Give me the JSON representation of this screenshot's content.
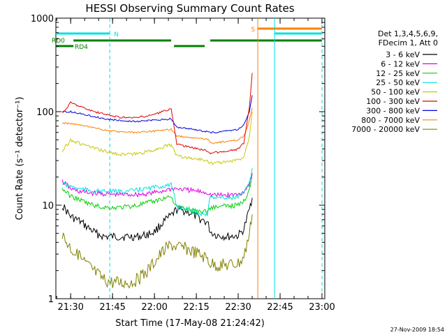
{
  "chart_data": {
    "type": "line",
    "title": "HESSI Observing Summary Count Rates",
    "xlabel": "Start Time (17-May-08 21:24:42)",
    "ylabel": "Count Rate (s⁻¹ detector⁻¹)",
    "ylog": true,
    "ylim": [
      1,
      1000
    ],
    "xlim_minutes": [
      21.4667,
      22.0167
    ],
    "x_ticks": [
      "21:30",
      "21:45",
      "22:00",
      "22:15",
      "22:30",
      "22:45",
      "23:00"
    ],
    "y_ticks": [
      "1",
      "10",
      "100",
      "1000"
    ],
    "legend_header": [
      "Det 1,3,4,5,6,9,",
      "FDecim 1, Att 0"
    ],
    "legend_position": "right",
    "footer_timestamp": "27-Nov-2009 18:54",
    "series": [
      {
        "name": "3 - 6 keV",
        "color": "#000000",
        "x": [
          "21:27",
          "21:30",
          "21:33",
          "21:36",
          "21:39",
          "21:42",
          "21:45",
          "21:48",
          "21:51",
          "21:54",
          "21:57",
          "22:00",
          "22:03",
          "22:06",
          "22:08",
          "22:12",
          "22:16",
          "22:19",
          "22:20",
          "22:22",
          "22:26",
          "22:30",
          "22:32",
          "22:34",
          "22:35"
        ],
        "y": [
          10,
          7.5,
          6.8,
          5.8,
          5,
          4.6,
          4.6,
          4.6,
          4.6,
          4.6,
          4.8,
          5.2,
          6.5,
          7.7,
          9,
          8.5,
          7.2,
          6.5,
          5.2,
          4.8,
          4.6,
          4.7,
          5.5,
          9,
          12
        ]
      },
      {
        "name": "6 - 12 keV",
        "color": "#e000e0",
        "x": [
          "21:27",
          "21:30",
          "21:33",
          "21:36",
          "21:39",
          "21:42",
          "21:45",
          "21:48",
          "21:51",
          "21:54",
          "21:57",
          "22:00",
          "22:03",
          "22:06",
          "22:08",
          "22:12",
          "22:16",
          "22:19",
          "22:20",
          "22:22",
          "22:26",
          "22:30",
          "22:32",
          "22:34",
          "22:35"
        ],
        "y": [
          18,
          15,
          14,
          13.6,
          13.4,
          13.2,
          13,
          13,
          13,
          13,
          13.2,
          13.6,
          14.2,
          15,
          15,
          14.5,
          14,
          13.6,
          13,
          12.8,
          12.8,
          13,
          14,
          17,
          22
        ]
      },
      {
        "name": "12 - 25 keV",
        "color": "#00d000",
        "x": [
          "21:27",
          "21:30",
          "21:33",
          "21:36",
          "21:39",
          "21:42",
          "21:45",
          "21:48",
          "21:51",
          "21:54",
          "21:57",
          "22:00",
          "22:03",
          "22:06",
          "22:08",
          "22:12",
          "22:16",
          "22:19",
          "22:20",
          "22:22",
          "22:26",
          "22:30",
          "22:32",
          "22:34",
          "22:35"
        ],
        "y": [
          15,
          12.5,
          11.5,
          10.5,
          9.8,
          9.5,
          9.4,
          9.5,
          9.7,
          10,
          10.5,
          11,
          11.8,
          12.5,
          9.5,
          9,
          8.6,
          8.6,
          9.4,
          9.6,
          9.8,
          10,
          11,
          15,
          22
        ]
      },
      {
        "name": "25 - 50 keV",
        "color": "#00e0e0",
        "x": [
          "21:27",
          "21:30",
          "21:33",
          "21:36",
          "21:39",
          "21:42",
          "21:45",
          "21:48",
          "21:51",
          "21:54",
          "21:57",
          "22:00",
          "22:03",
          "22:06",
          "22:08",
          "22:12",
          "22:16",
          "22:19",
          "22:20",
          "22:22",
          "22:26",
          "22:30",
          "22:32",
          "22:34",
          "22:35"
        ],
        "y": [
          17,
          16,
          15,
          14.5,
          14.2,
          14,
          14,
          14,
          14.2,
          14.5,
          15,
          15.5,
          16,
          16.5,
          9.8,
          9,
          8.2,
          8,
          12.5,
          12.2,
          12,
          12.2,
          13.5,
          17,
          25
        ]
      },
      {
        "name": "50 - 100 keV",
        "color": "#c8c800",
        "x": [
          "21:27",
          "21:30",
          "21:33",
          "21:36",
          "21:39",
          "21:42",
          "21:45",
          "21:48",
          "21:51",
          "21:54",
          "21:57",
          "22:00",
          "22:03",
          "22:06",
          "22:08",
          "22:12",
          "22:16",
          "22:19",
          "22:20",
          "22:22",
          "22:26",
          "22:30",
          "22:32",
          "22:34",
          "22:35"
        ],
        "y": [
          38,
          50,
          46,
          43,
          40,
          38,
          36,
          35,
          35,
          35.5,
          37,
          39,
          42,
          44,
          34,
          32,
          31,
          30,
          28,
          28.5,
          29,
          30.5,
          33,
          55,
          100
        ]
      },
      {
        "name": "100 - 300 keV",
        "color": "#e00000",
        "x": [
          "21:27",
          "21:30",
          "21:33",
          "21:36",
          "21:39",
          "21:42",
          "21:45",
          "21:48",
          "21:51",
          "21:54",
          "21:57",
          "22:00",
          "22:03",
          "22:06",
          "22:08",
          "22:12",
          "22:16",
          "22:19",
          "22:20",
          "22:22",
          "22:26",
          "22:30",
          "22:32",
          "22:34",
          "22:35"
        ],
        "y": [
          95,
          125,
          115,
          106,
          99,
          94,
          90,
          87,
          86,
          86.5,
          89,
          94,
          100,
          108,
          45,
          42,
          40,
          38,
          36,
          36.5,
          37.5,
          40,
          46,
          110,
          260
        ]
      },
      {
        "name": "300 - 800 keV",
        "color": "#0000e0",
        "x": [
          "21:27",
          "21:30",
          "21:33",
          "21:36",
          "21:39",
          "21:42",
          "21:45",
          "21:48",
          "21:51",
          "21:54",
          "21:57",
          "22:00",
          "22:03",
          "22:06",
          "22:08",
          "22:12",
          "22:16",
          "22:19",
          "22:20",
          "22:22",
          "22:26",
          "22:30",
          "22:32",
          "22:34",
          "22:35"
        ],
        "y": [
          100,
          100,
          96,
          92,
          88,
          84,
          82,
          80,
          79,
          79,
          80,
          81,
          82,
          84,
          68,
          66,
          63,
          61,
          60,
          60,
          62,
          65,
          72,
          100,
          150
        ]
      },
      {
        "name": "800 - 7000 keV",
        "color": "#ff8000",
        "x": [
          "21:27",
          "21:30",
          "21:33",
          "21:36",
          "21:39",
          "21:42",
          "21:45",
          "21:48",
          "21:51",
          "21:54",
          "21:57",
          "22:00",
          "22:03",
          "22:06",
          "22:08",
          "22:12",
          "22:16",
          "22:19",
          "22:20",
          "22:22",
          "22:26",
          "22:30",
          "22:32",
          "22:34",
          "22:35"
        ],
        "y": [
          75,
          75,
          72,
          69,
          66,
          64,
          62,
          61,
          60,
          60,
          61,
          62,
          63,
          65,
          55,
          53,
          52,
          51,
          46,
          46.5,
          48,
          50,
          55,
          80,
          110
        ]
      },
      {
        "name": "7000 - 20000 keV",
        "color": "#808000",
        "x": [
          "21:27",
          "21:30",
          "21:33",
          "21:36",
          "21:39",
          "21:42",
          "21:45",
          "21:48",
          "21:51",
          "21:54",
          "21:57",
          "22:00",
          "22:03",
          "22:06",
          "22:08",
          "22:12",
          "22:16",
          "22:19",
          "22:20",
          "22:22",
          "22:26",
          "22:30",
          "22:32",
          "22:34",
          "22:35"
        ],
        "y": [
          4.8,
          3.5,
          2.8,
          2.3,
          1.9,
          1.6,
          1.5,
          1.5,
          1.5,
          1.6,
          1.9,
          2.5,
          3.2,
          3.8,
          3.6,
          3.4,
          3,
          2.7,
          2.4,
          2.3,
          2.3,
          2.4,
          2.8,
          5,
          8
        ]
      }
    ],
    "vertical_markers": [
      {
        "time": "21:44",
        "color": "#00e0e0",
        "style": "dashed"
      },
      {
        "time": "22:37",
        "color": "#ff8000",
        "style": "solid"
      },
      {
        "time": "22:43",
        "color": "#00e0e0",
        "style": "solid"
      },
      {
        "time": "23:00",
        "color": "#00e0e0",
        "style": "dashed"
      }
    ],
    "flag_bars": [
      {
        "label": "N",
        "color": "#00e0e0",
        "segments": [
          [
            "21:24:42",
            "21:44"
          ],
          [
            "22:43",
            "23:00"
          ]
        ]
      },
      {
        "label": "S",
        "color": "#ff8000",
        "segments": [
          [
            "22:37",
            "23:00"
          ]
        ]
      },
      {
        "label": "RD0",
        "color": "#008000",
        "segments": [
          [
            "21:31",
            "22:06"
          ],
          [
            "22:20",
            "23:00"
          ]
        ]
      },
      {
        "label": "RD4",
        "color": "#008000",
        "segments": [
          [
            "21:24:42",
            "21:31"
          ],
          [
            "22:07",
            "22:18"
          ]
        ]
      }
    ]
  }
}
